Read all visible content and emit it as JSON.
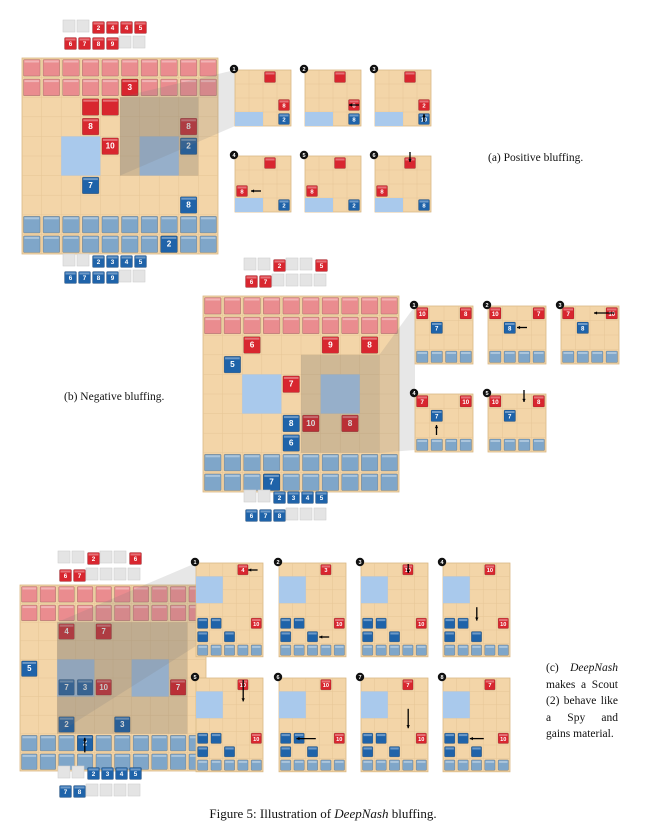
{
  "figure": {
    "caption_prefix": "Figure 5: Illustration of ",
    "caption_italic": "DeepNash",
    "caption_suffix": " bluffing."
  },
  "panels": {
    "a": {
      "label": "(a) Positive bluffing.",
      "steps": [
        "1",
        "2",
        "3",
        "4",
        "5",
        "6"
      ]
    },
    "b": {
      "label": "(b) Negative bluffing.",
      "steps": [
        "1",
        "2",
        "3",
        "4",
        "5"
      ]
    },
    "c": {
      "label_prefix": "(c) ",
      "label_italic": "DeepNash",
      "label_suffix": " makes a Scout (2) behave like a Spy and gains material.",
      "steps": [
        "1",
        "2",
        "3",
        "4",
        "5",
        "6",
        "7",
        "8"
      ]
    }
  },
  "colors": {
    "board": "#f3d5a8",
    "grid_line": "#e6c596",
    "lake": "#a9c9ec",
    "red_piece": "#d8262f",
    "red_faded": "#ea8c8f",
    "blue_piece": "#1f63a9",
    "blue_faded": "#7fa6c9",
    "captured_slot": "#e4e4e4"
  },
  "pieces": {
    "a": {
      "captured_red_top": [
        "",
        "",
        "2",
        "4",
        "4",
        "5"
      ],
      "captured_red_bottom": [
        "6",
        "7",
        "8",
        "9",
        "",
        ""
      ],
      "board_red": [
        "3",
        "8",
        "10",
        "8",
        "10"
      ],
      "board_blue": [
        "2",
        "7",
        "6",
        "8",
        "2"
      ],
      "captured_blue_top": [
        "",
        "",
        "2",
        "3",
        "4",
        "5"
      ],
      "captured_blue_bottom": [
        "6",
        "7",
        "8",
        "9",
        "",
        ""
      ],
      "step_labels": [
        "8",
        "2",
        "8",
        "8",
        "2",
        "10",
        "8",
        "2",
        "8",
        "2",
        "8",
        "8",
        "2"
      ]
    },
    "b": {
      "captured_red_top": [
        "",
        "",
        "2",
        "",
        "",
        "5"
      ],
      "captured_red_bottom": [
        "6",
        "7",
        "",
        "",
        "",
        ""
      ],
      "board_red": [
        "6",
        "9",
        "8",
        "7",
        "10",
        "8"
      ],
      "board_blue": [
        "5",
        "8",
        "6",
        "7"
      ],
      "captured_blue_top": [
        "",
        "",
        "2",
        "3",
        "4",
        "5"
      ],
      "captured_blue_bottom": [
        "6",
        "7",
        "8",
        "",
        "",
        ""
      ],
      "step_labels": [
        "10",
        "8",
        "7",
        "10",
        "7",
        "8",
        "7",
        "10",
        "8",
        "7",
        "10",
        "7",
        "10",
        "8",
        "7",
        "10"
      ]
    },
    "c": {
      "captured_red_top": [
        "",
        "",
        "2",
        "",
        "",
        "6"
      ],
      "captured_red_bottom": [
        "6",
        "7",
        "",
        "",
        "",
        ""
      ],
      "board_red": [
        "4",
        "7",
        "10",
        "7"
      ],
      "board_blue": [
        "5",
        "7",
        "3",
        "2",
        "3",
        "2",
        "8",
        "10",
        "7"
      ],
      "captured_blue_top": [
        "",
        "",
        "2",
        "3",
        "4",
        "5"
      ],
      "captured_blue_bottom": [
        "7",
        "8",
        "",
        "",
        "",
        ""
      ],
      "step_labels": [
        "4",
        "5",
        "7",
        "10",
        "3",
        "5",
        "10",
        "7",
        "10",
        "2",
        "5",
        "7",
        "10",
        "3",
        "5",
        "7",
        "10",
        "3",
        "7",
        "5",
        "10",
        "7",
        "3",
        "5",
        "7",
        "10",
        "3",
        "5",
        "7",
        "10",
        "3"
      ]
    }
  }
}
